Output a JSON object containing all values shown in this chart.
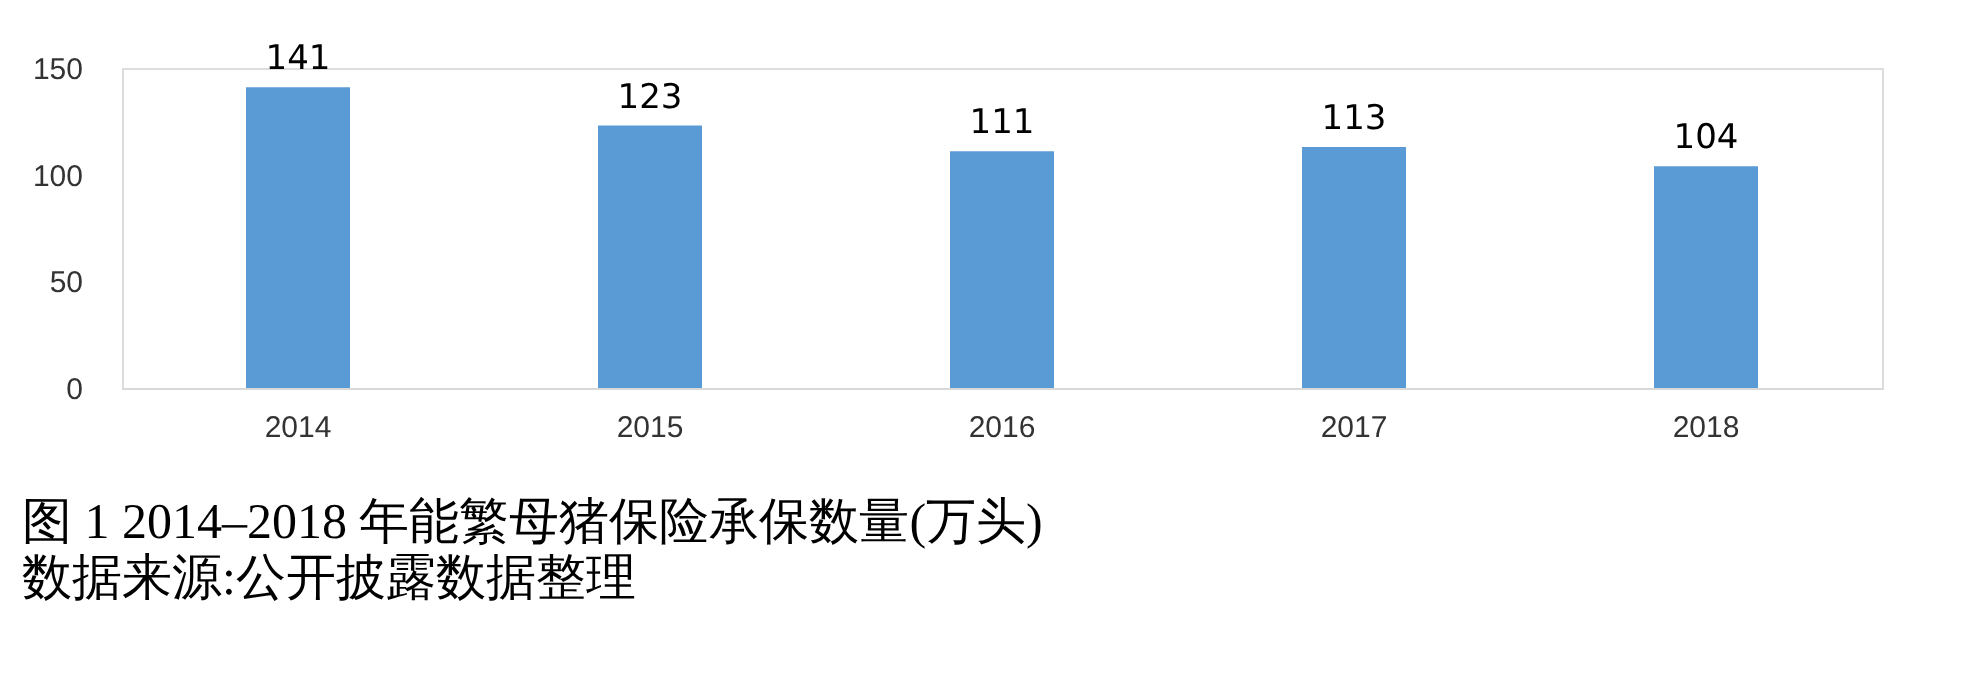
{
  "chart_data": {
    "type": "bar",
    "title": "图 1 2014–2018 年能繁母猪保险承保数量(万头)",
    "categories": [
      "2014",
      "2015",
      "2016",
      "2017",
      "2018"
    ],
    "values": [
      141,
      123,
      111,
      113,
      104
    ],
    "color": "#5b9bd5",
    "ylim": [
      0,
      150
    ],
    "yticks": [
      0,
      50,
      100,
      150
    ],
    "grid": false,
    "data_labels": true,
    "annotations": [
      "数据来源:公开披露数据整理"
    ]
  }
}
